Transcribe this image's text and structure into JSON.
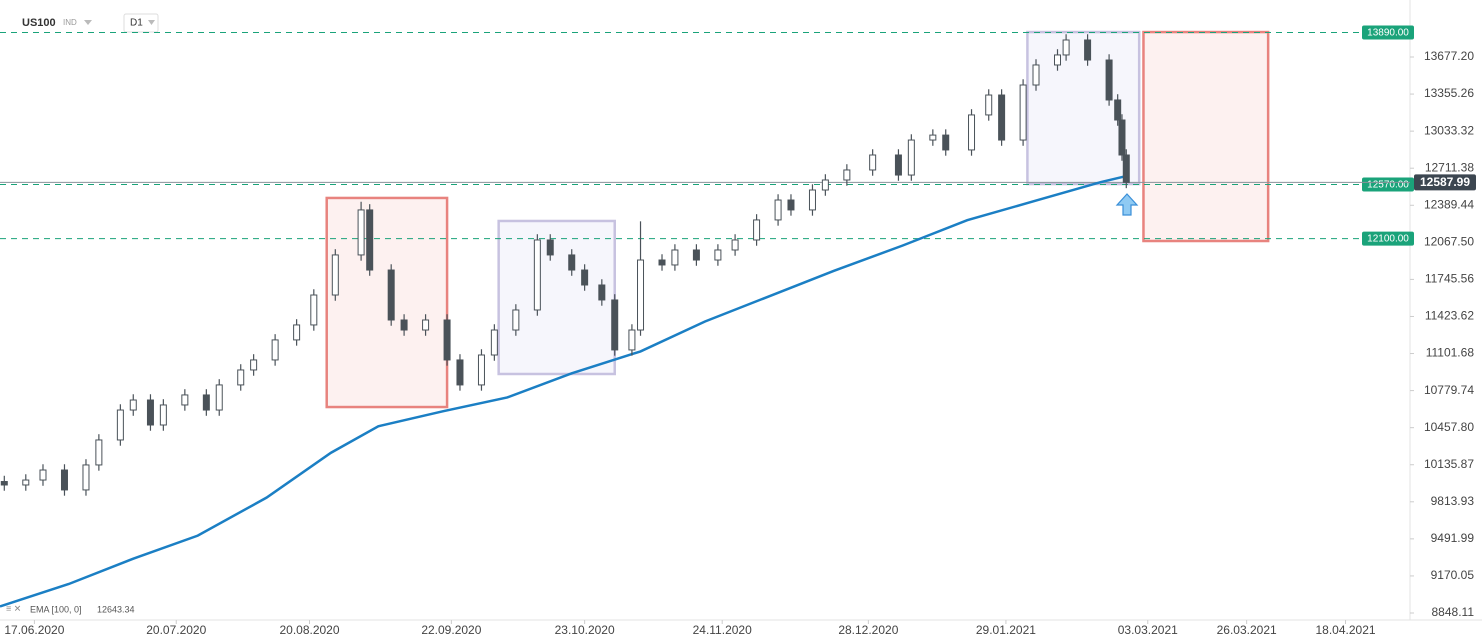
{
  "chart_data": {
    "type": "candlestick",
    "symbol": "US100",
    "market": "IND",
    "timeframe": "D1",
    "x": [
      "2020-06-10",
      "2020-06-15",
      "2020-06-19",
      "2020-06-24",
      "2020-06-29",
      "2020-07-02",
      "2020-07-07",
      "2020-07-10",
      "2020-07-14",
      "2020-07-17",
      "2020-07-22",
      "2020-07-27",
      "2020-07-30",
      "2020-08-04",
      "2020-08-07",
      "2020-08-12",
      "2020-08-17",
      "2020-08-21",
      "2020-08-26",
      "2020-09-01",
      "2020-09-03",
      "2020-09-08",
      "2020-09-11",
      "2020-09-16",
      "2020-09-21",
      "2020-09-24",
      "2020-09-29",
      "2020-10-02",
      "2020-10-07",
      "2020-10-12",
      "2020-10-15",
      "2020-10-20",
      "2020-10-23",
      "2020-10-27",
      "2020-10-30",
      "2020-11-03",
      "2020-11-05",
      "2020-11-10",
      "2020-11-13",
      "2020-11-18",
      "2020-11-23",
      "2020-11-27",
      "2020-12-02",
      "2020-12-07",
      "2020-12-10",
      "2020-12-15",
      "2020-12-18",
      "2020-12-23",
      "2020-12-29",
      "2021-01-04",
      "2021-01-07",
      "2021-01-12",
      "2021-01-15",
      "2021-01-21",
      "2021-01-25",
      "2021-01-28",
      "2021-02-02",
      "2021-02-05",
      "2021-02-10",
      "2021-02-12",
      "2021-02-17",
      "2021-02-22",
      "2021-02-24",
      "2021-02-25",
      "2021-02-26"
    ],
    "open": [
      9990,
      9960,
      10003,
      10090,
      9917,
      10134,
      10351,
      10611,
      10698,
      10481,
      10655,
      10742,
      10611,
      10829,
      10959,
      11046,
      11220,
      11350,
      11610,
      11958,
      12349,
      11827,
      11393,
      11306,
      11393,
      11046,
      10829,
      11089,
      11306,
      11480,
      12088,
      11958,
      11827,
      11697,
      11567,
      11133,
      11306,
      11914,
      11871,
      12001,
      11914,
      12001,
      12088,
      12262,
      12435,
      12349,
      12522,
      12609,
      12696,
      12826,
      12652,
      12956,
      12999,
      12870,
      13174,
      13347,
      12956,
      13434,
      13608,
      13695,
      13825,
      13651,
      13304,
      13130,
      12826
    ],
    "high": [
      10040,
      10053,
      10140,
      10140,
      10184,
      10401,
      10661,
      10748,
      10748,
      10705,
      10792,
      10792,
      10879,
      11009,
      11096,
      11270,
      11400,
      11660,
      12008,
      12420,
      12399,
      11877,
      11443,
      11443,
      11443,
      11096,
      11139,
      11356,
      11530,
      12138,
      12138,
      12008,
      11877,
      11747,
      11617,
      11356,
      12250,
      11964,
      12051,
      12051,
      12051,
      12138,
      12312,
      12485,
      12485,
      12572,
      12659,
      12746,
      12876,
      12876,
      13006,
      13049,
      13049,
      13224,
      13397,
      13397,
      13484,
      13658,
      13745,
      13875,
      13875,
      13701,
      13354,
      13180,
      12876
    ],
    "low": [
      9910,
      9910,
      9953,
      9867,
      9867,
      10084,
      10301,
      10561,
      10431,
      10431,
      10605,
      10561,
      10561,
      10779,
      10909,
      10996,
      11170,
      11300,
      11560,
      11908,
      11777,
      11343,
      11256,
      11256,
      10996,
      10779,
      10779,
      11039,
      11256,
      11430,
      11908,
      11777,
      11647,
      11517,
      11083,
      11083,
      11256,
      11821,
      11821,
      11864,
      11864,
      11951,
      12038,
      12212,
      12299,
      12299,
      12472,
      12559,
      12646,
      12602,
      12602,
      12906,
      12820,
      12820,
      13124,
      12906,
      12906,
      13384,
      13558,
      13645,
      13601,
      13254,
      13080,
      12776,
      12538
    ],
    "close": [
      9960,
      10003,
      10090,
      9917,
      10134,
      10351,
      10611,
      10698,
      10481,
      10655,
      10742,
      10611,
      10829,
      10959,
      11046,
      11220,
      11350,
      11610,
      11958,
      12349,
      11827,
      11393,
      11306,
      11393,
      11046,
      10829,
      11089,
      11306,
      11480,
      12088,
      11958,
      11827,
      11697,
      11567,
      11133,
      11306,
      11914,
      11871,
      12001,
      11914,
      12001,
      12088,
      12262,
      12435,
      12349,
      12522,
      12609,
      12696,
      12826,
      12652,
      12956,
      12999,
      12870,
      13174,
      13347,
      12956,
      13434,
      13608,
      13695,
      13825,
      13651,
      13304,
      13130,
      12826,
      12587.99
    ],
    "up_color": "#ffffff",
    "down_color": "#4a5259",
    "ema": {
      "label": "EMA [100, 0]",
      "last": 12643.34,
      "color": "#1b7fc4",
      "x": [
        "2020-06-09",
        "2020-06-25",
        "2020-07-10",
        "2020-07-25",
        "2020-08-10",
        "2020-08-25",
        "2020-09-05",
        "2020-09-20",
        "2020-10-05",
        "2020-10-20",
        "2020-11-05",
        "2020-11-20",
        "2020-12-05",
        "2020-12-20",
        "2021-01-05",
        "2021-01-20",
        "2021-02-05",
        "2021-02-20",
        "2021-02-26"
      ],
      "values": [
        8905,
        9100,
        9320,
        9520,
        9850,
        10240,
        10470,
        10600,
        10720,
        10930,
        11120,
        11380,
        11600,
        11820,
        12040,
        12260,
        12430,
        12590,
        12643.34
      ]
    },
    "levels": [
      {
        "value": 13890,
        "label": "13890.00"
      },
      {
        "value": 12570,
        "label": "12570.00"
      },
      {
        "value": 12100,
        "label": "12100.00"
      }
    ],
    "level_color": "#1aa37a",
    "zones": [
      {
        "x": [
          "2020-08-24",
          "2020-09-21"
        ],
        "y": [
          12453,
          10637
        ],
        "color": "#e8837e",
        "fill": "#fdf1f0"
      },
      {
        "x": [
          "2020-10-03",
          "2020-10-30"
        ],
        "y": [
          12253,
          10924
        ],
        "color": "#c7c2e0",
        "fill": "#f6f6fc"
      },
      {
        "x": [
          "2021-02-03",
          "2021-03-01"
        ],
        "y": [
          13894,
          12574
        ],
        "color": "#c7c2e0",
        "fill": "#f6f6fc"
      },
      {
        "x": [
          "2021-03-02",
          "2021-03-31"
        ],
        "y": [
          13894,
          12079
        ],
        "color": "#e8837e",
        "fill": "#fdf1f0"
      }
    ],
    "xlim": [
      "2020-06-09",
      "2021-05-03"
    ],
    "xticks": [
      {
        "value": "2020-06-17",
        "label": "17.06.2020"
      },
      {
        "value": "2020-07-20",
        "label": "20.07.2020"
      },
      {
        "value": "2020-08-20",
        "label": "20.08.2020"
      },
      {
        "value": "2020-09-22",
        "label": "22.09.2020"
      },
      {
        "value": "2020-10-23",
        "label": "23.10.2020"
      },
      {
        "value": "2020-11-24",
        "label": "24.11.2020"
      },
      {
        "value": "2020-12-28",
        "label": "28.12.2020"
      },
      {
        "value": "2021-01-29",
        "label": "29.01.2021"
      },
      {
        "value": "2021-03-03",
        "label": "03.03.2021"
      },
      {
        "value": "2021-03-26",
        "label": "26.03.2021"
      },
      {
        "value": "2021-04-18",
        "label": "18.04.2021"
      }
    ],
    "ylim": [
      8787.3,
      14172.3
    ],
    "yticks": [
      8848.11,
      9170.05,
      9491.99,
      9813.93,
      10135.87,
      {
        "value": 10457.8,
        "label": "10457.80"
      },
      10779.74,
      11101.68,
      11423.62,
      11745.56,
      {
        "value": 12067.5,
        "label": "12067.50"
      },
      12389.44,
      12711.38,
      13033.32,
      13355.26,
      {
        "value": 13677.2,
        "label": "13677.20"
      }
    ]
  }
}
